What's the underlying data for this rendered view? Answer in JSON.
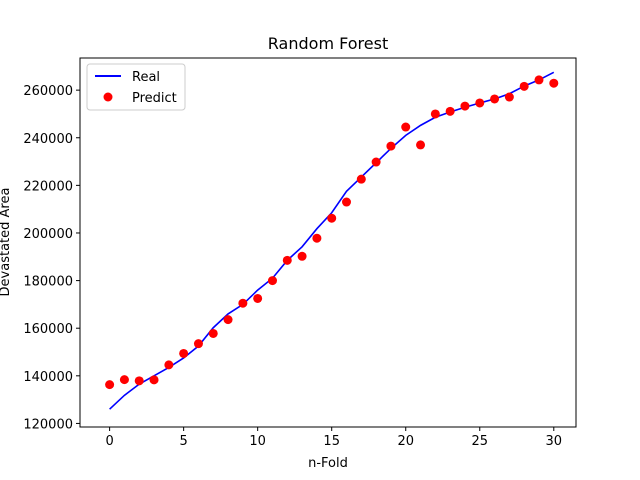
{
  "chart_data": {
    "type": "line+scatter",
    "title": "Random Forest",
    "xlabel": "n-Fold",
    "ylabel": "Devastated Area",
    "xlim": [
      -2,
      31.5
    ],
    "ylim": [
      118500,
      273500
    ],
    "xticks": [
      0,
      5,
      10,
      15,
      20,
      25,
      30
    ],
    "yticks": [
      120000,
      140000,
      160000,
      180000,
      200000,
      220000,
      240000,
      260000
    ],
    "grid": false,
    "legend_position": "top-left",
    "x": [
      0,
      1,
      2,
      3,
      4,
      5,
      6,
      7,
      8,
      9,
      10,
      11,
      12,
      13,
      14,
      15,
      16,
      17,
      18,
      19,
      20,
      21,
      22,
      23,
      24,
      25,
      26,
      27,
      28,
      29,
      30
    ],
    "series": [
      {
        "name": "Real",
        "type": "line",
        "color": "#0000ff",
        "values": [
          126000,
          131800,
          136500,
          140000,
          143500,
          147500,
          152500,
          160200,
          166000,
          170000,
          176000,
          181000,
          188500,
          194200,
          201800,
          208500,
          217500,
          223500,
          229500,
          235500,
          241000,
          245200,
          248600,
          250800,
          252800,
          254600,
          256300,
          258500,
          261700,
          264300,
          267500
        ]
      },
      {
        "name": "Predict",
        "type": "scatter",
        "color": "#ff0000",
        "values": [
          136300,
          138400,
          137900,
          138300,
          144600,
          149400,
          153500,
          157800,
          163600,
          170500,
          172500,
          180000,
          188500,
          190200,
          197800,
          206200,
          213000,
          222600,
          229800,
          236500,
          244500,
          237000,
          250000,
          251100,
          253300,
          254600,
          256300,
          257100,
          261600,
          264300,
          262900
        ]
      }
    ]
  }
}
